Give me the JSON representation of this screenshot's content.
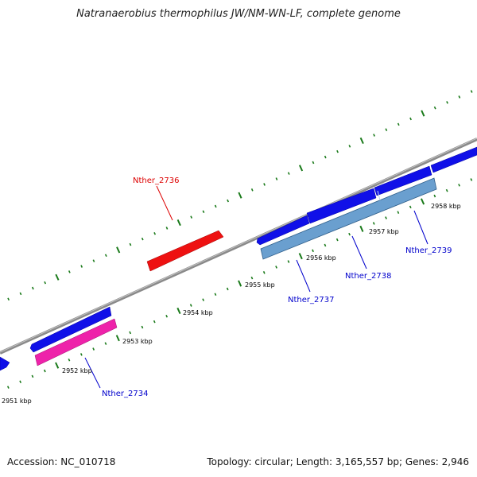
{
  "title": "Natranaerobius thermophilus JW/NM-WN-LF, complete genome",
  "footer": {
    "accession": "Accession: NC_010718",
    "summary": "Topology: circular; Length: 3,165,557 bp; Genes: 2,946"
  },
  "colors": {
    "backbone": "#8a8a8a",
    "tick": "#1a7a1a",
    "cds_forward": "#1010e8",
    "cds_reverse": "#6a9fcf",
    "highlight_red": "#ee1111",
    "highlight_pink": "#ee22aa",
    "label_blue": "#0000cc",
    "label_red": "#dd0000"
  },
  "ticks": [
    {
      "text": "2951 kbp"
    },
    {
      "text": "2952 kbp"
    },
    {
      "text": "2953 kbp"
    },
    {
      "text": "2954 kbp"
    },
    {
      "text": "2955 kbp"
    },
    {
      "text": "2956 kbp"
    },
    {
      "text": "2957 kbp"
    },
    {
      "text": "2958 kbp"
    }
  ],
  "gene_labels": [
    {
      "text": "Nther_2736",
      "color": "red"
    },
    {
      "text": "Nther_2737",
      "color": "blue"
    },
    {
      "text": "Nther_2738",
      "color": "blue"
    },
    {
      "text": "Nther_2739",
      "color": "blue"
    },
    {
      "text": "Nther_2734",
      "color": "blue"
    }
  ]
}
